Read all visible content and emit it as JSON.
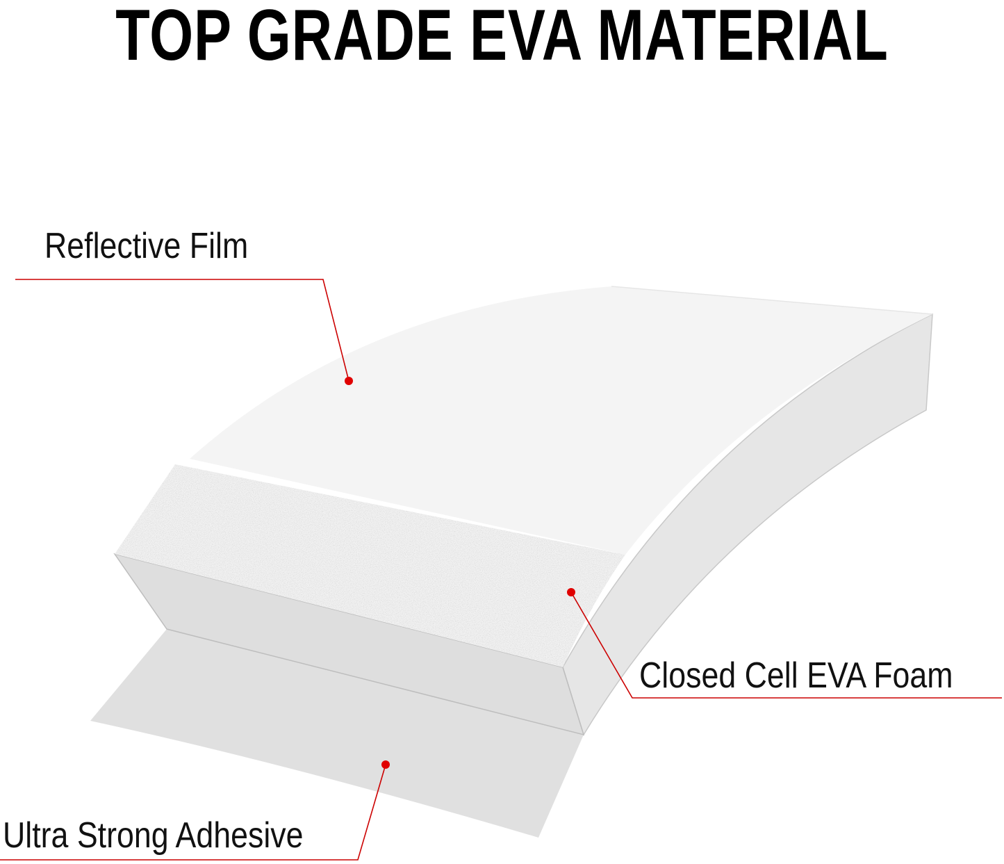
{
  "title": "TOP GRADE EVA MATERIAL",
  "layers": [
    {
      "label": "Reflective Film"
    },
    {
      "label": "Closed Cell EVA Foam"
    },
    {
      "label": "Ultra Strong Adhesive"
    }
  ],
  "colors": {
    "callout": "#cc0000",
    "dot": "#e00000",
    "film": "#f3f3f3",
    "foam_side": "#e2e2e2",
    "adhesive": "#e0e0e0"
  }
}
